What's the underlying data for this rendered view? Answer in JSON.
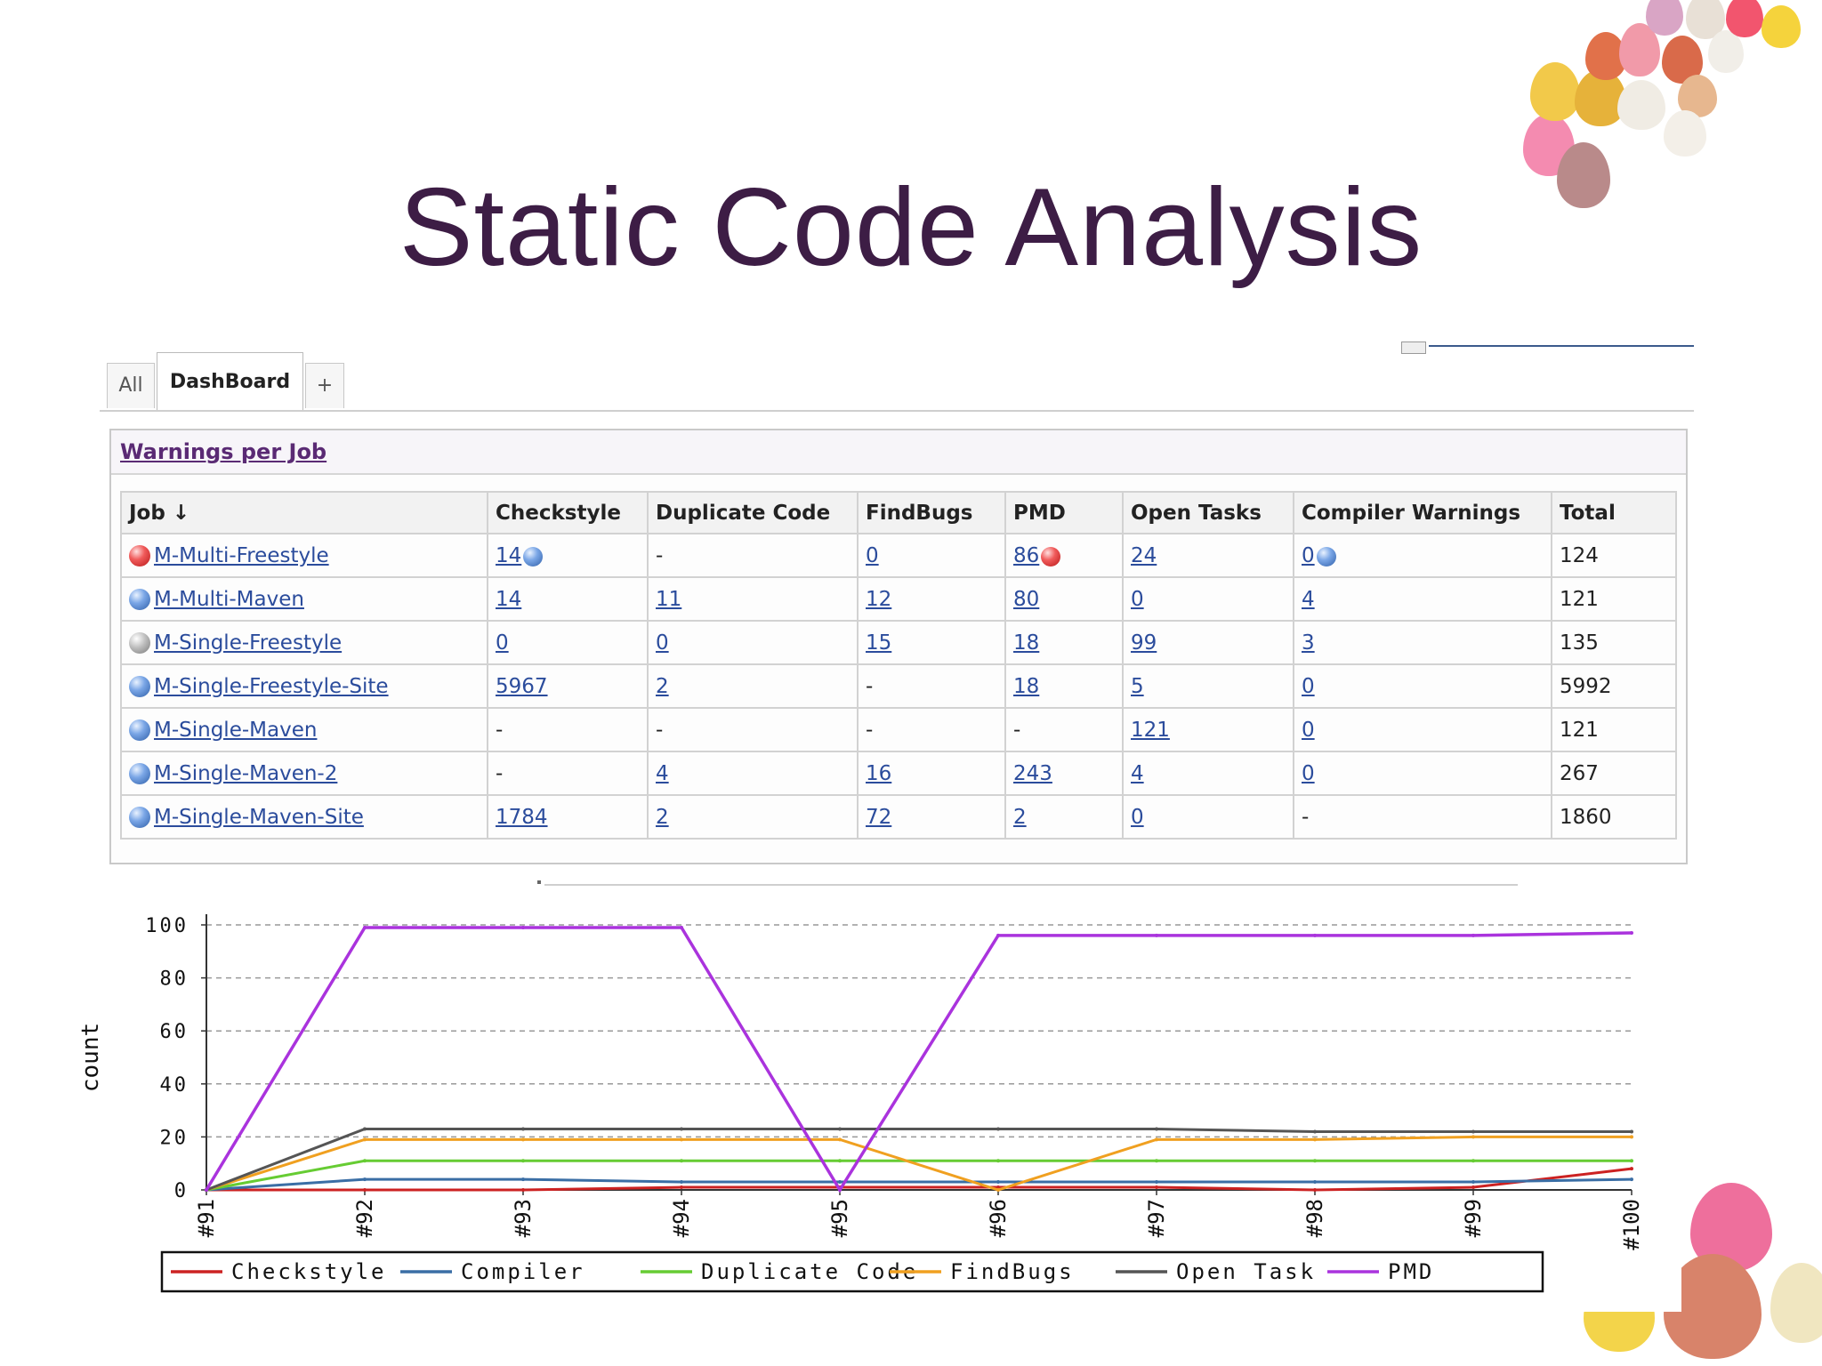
{
  "slide": {
    "title": "Static Code Analysis"
  },
  "tabs": [
    {
      "label": "All",
      "active": false
    },
    {
      "label": "DashBoard",
      "active": true
    },
    {
      "label": "+",
      "active": false
    }
  ],
  "panel": {
    "title": "Warnings per Job",
    "sort_icon": "sort-down-arrow",
    "columns": [
      "Job ↓",
      "Checkstyle",
      "Duplicate Code",
      "FindBugs",
      "PMD",
      "Open Tasks",
      "Compiler Warnings",
      "Total"
    ],
    "rows": [
      {
        "status": "red",
        "job": "M-Multi-Freestyle",
        "checkstyle": "14",
        "duplicate": "-",
        "findbugs": "0",
        "pmd": "86",
        "tasks": "24",
        "compiler": "0",
        "total": "124"
      },
      {
        "status": "blue",
        "job": "M-Multi-Maven",
        "checkstyle": "14",
        "duplicate": "11",
        "findbugs": "12",
        "pmd": "80",
        "tasks": "0",
        "compiler": "4",
        "total": "121"
      },
      {
        "status": "grey",
        "job": "M-Single-Freestyle",
        "checkstyle": "0",
        "duplicate": "0",
        "findbugs": "15",
        "pmd": "18",
        "tasks": "99",
        "compiler": "3",
        "total": "135"
      },
      {
        "status": "blue",
        "job": "M-Single-Freestyle-Site",
        "checkstyle": "5967",
        "duplicate": "2",
        "findbugs": "-",
        "pmd": "18",
        "tasks": "5",
        "compiler": "0",
        "total": "5992"
      },
      {
        "status": "blue",
        "job": "M-Single-Maven",
        "checkstyle": "-",
        "duplicate": "-",
        "findbugs": "-",
        "pmd": "-",
        "tasks": "121",
        "compiler": "0",
        "total": "121"
      },
      {
        "status": "blue",
        "job": "M-Single-Maven-2",
        "checkstyle": "-",
        "duplicate": "4",
        "findbugs": "16",
        "pmd": "243",
        "tasks": "4",
        "compiler": "0",
        "total": "267"
      },
      {
        "status": "blue",
        "job": "M-Single-Maven-Site",
        "checkstyle": "1784",
        "duplicate": "2",
        "findbugs": "72",
        "pmd": "2",
        "tasks": "0",
        "compiler": "-",
        "total": "1860"
      }
    ],
    "cell_icons": {
      "0": {
        "checkstyle": "blue",
        "pmd": "red",
        "compiler": "blue"
      }
    }
  },
  "colors": {
    "title": "#3d1d45",
    "link": "#2b4c9c",
    "checkstyle": "#cc2222",
    "compiler": "#3a6ea5",
    "duplicate": "#66cc33",
    "findbugs": "#f0a020",
    "opentask": "#555555",
    "pmd": "#aa33dd"
  },
  "chart_data": {
    "type": "line",
    "ylabel": "count",
    "xlabel": "",
    "ylim": [
      0,
      100
    ],
    "yticks": [
      0,
      20,
      40,
      60,
      80,
      100
    ],
    "grid": true,
    "legend_position": "bottom",
    "x": [
      "#91",
      "#92",
      "#93",
      "#94",
      "#95",
      "#96",
      "#97",
      "#98",
      "#99",
      "#100"
    ],
    "series": [
      {
        "name": "Checkstyle",
        "color": "#cc2222",
        "values": [
          0,
          0,
          0,
          1,
          1,
          1,
          1,
          0,
          1,
          8
        ]
      },
      {
        "name": "Compiler",
        "color": "#3a6ea5",
        "values": [
          0,
          4,
          4,
          3,
          3,
          3,
          3,
          3,
          3,
          4
        ]
      },
      {
        "name": "Duplicate Code",
        "color": "#66cc33",
        "values": [
          0,
          11,
          11,
          11,
          11,
          11,
          11,
          11,
          11,
          11
        ]
      },
      {
        "name": "FindBugs",
        "color": "#f0a020",
        "values": [
          0,
          19,
          19,
          19,
          19,
          0,
          19,
          19,
          20,
          20
        ]
      },
      {
        "name": "Open Task",
        "color": "#555555",
        "values": [
          0,
          23,
          23,
          23,
          23,
          23,
          23,
          22,
          22,
          22
        ]
      },
      {
        "name": "PMD",
        "color": "#aa33dd",
        "values": [
          0,
          99,
          99,
          99,
          0,
          96,
          96,
          96,
          96,
          97
        ]
      }
    ]
  }
}
